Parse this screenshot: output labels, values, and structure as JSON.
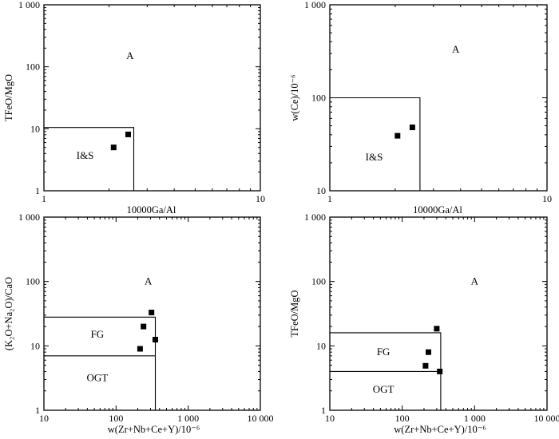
{
  "chart_data": [
    {
      "id": "p1",
      "type": "scatter",
      "scale": {
        "x": "log",
        "y": "log"
      },
      "xlim": [
        1,
        10
      ],
      "ylim": [
        1,
        1000
      ],
      "xlabel": "10000Ga/Al",
      "ylabel": "TFeO/MgO",
      "xticks": [
        {
          "v": 1,
          "label": "1"
        },
        {
          "v": 10,
          "label": "10"
        }
      ],
      "yticks": [
        {
          "v": 1,
          "label": "1"
        },
        {
          "v": 10,
          "label": "10"
        },
        {
          "v": 100,
          "label": "100"
        },
        {
          "v": 1000,
          "label": "1 000"
        }
      ],
      "minor_x": [
        2,
        3,
        4,
        5,
        6,
        7,
        8,
        9
      ],
      "minor_y": [
        2,
        3,
        4,
        5,
        6,
        7,
        8,
        9,
        20,
        30,
        40,
        50,
        60,
        70,
        80,
        90,
        200,
        300,
        400,
        500,
        600,
        700,
        800,
        900
      ],
      "fields": [
        {
          "name": "I&S",
          "boundary": [
            [
              1,
              10.5
            ],
            [
              2.6,
              10.5
            ],
            [
              2.6,
              1
            ]
          ],
          "label_at": [
            1.55,
            3.7
          ]
        },
        {
          "name": "A",
          "boundary": [],
          "label_at": [
            2.5,
            150
          ]
        }
      ],
      "points": [
        [
          2.1,
          5.0
        ],
        [
          2.45,
          8.1
        ]
      ]
    },
    {
      "id": "p2",
      "type": "scatter",
      "scale": {
        "x": "log",
        "y": "log"
      },
      "xlim": [
        1,
        10
      ],
      "ylim": [
        10,
        1000
      ],
      "xlabel": "10000Ga/Al",
      "ylabel": "w(Ce)/10⁻⁶",
      "xticks": [
        {
          "v": 1,
          "label": "1"
        },
        {
          "v": 10,
          "label": "10"
        }
      ],
      "yticks": [
        {
          "v": 10,
          "label": "10"
        },
        {
          "v": 100,
          "label": "100"
        },
        {
          "v": 1000,
          "label": "1 000"
        }
      ],
      "minor_x": [
        2,
        3,
        4,
        5,
        6,
        7,
        8,
        9
      ],
      "minor_y": [
        20,
        30,
        40,
        50,
        60,
        70,
        80,
        90,
        200,
        300,
        400,
        500,
        600,
        700,
        800,
        900
      ],
      "fields": [
        {
          "name": "I&S",
          "boundary": [
            [
              1,
              100
            ],
            [
              2.6,
              100
            ],
            [
              2.6,
              10
            ]
          ],
          "label_at": [
            1.6,
            23
          ]
        },
        {
          "name": "A",
          "boundary": [],
          "label_at": [
            3.8,
            330
          ]
        }
      ],
      "points": [
        [
          2.05,
          39
        ],
        [
          2.4,
          48
        ]
      ]
    },
    {
      "id": "p3",
      "type": "scatter",
      "scale": {
        "x": "log",
        "y": "log"
      },
      "xlim": [
        10,
        10000
      ],
      "ylim": [
        1,
        1000
      ],
      "xlabel": "w(Zr+Nb+Ce+Y)/10⁻⁶",
      "ylabel": "(K₂O+Na₂O)/CaO",
      "xticks": [
        {
          "v": 10,
          "label": "10"
        },
        {
          "v": 100,
          "label": "100"
        },
        {
          "v": 1000,
          "label": "1 000"
        },
        {
          "v": 10000,
          "label": "10 000"
        }
      ],
      "yticks": [
        {
          "v": 1,
          "label": "1"
        },
        {
          "v": 10,
          "label": "10"
        },
        {
          "v": 100,
          "label": "100"
        },
        {
          "v": 1000,
          "label": "1 000"
        }
      ],
      "minor_x": [
        20,
        30,
        40,
        50,
        60,
        70,
        80,
        90,
        200,
        300,
        400,
        500,
        600,
        700,
        800,
        900,
        2000,
        3000,
        4000,
        5000,
        6000,
        7000,
        8000,
        9000
      ],
      "minor_y": [
        2,
        3,
        4,
        5,
        6,
        7,
        8,
        9,
        20,
        30,
        40,
        50,
        60,
        70,
        80,
        90,
        200,
        300,
        400,
        500,
        600,
        700,
        800,
        900
      ],
      "fields": [
        {
          "name": "FG",
          "boundary": [
            [
              10,
              28
            ],
            [
              350,
              28
            ],
            [
              350,
              1
            ]
          ],
          "label_at": [
            55,
            15
          ]
        },
        {
          "name": "OGT",
          "boundary": [
            [
              10,
              7
            ],
            [
              350,
              7
            ]
          ],
          "label_at": [
            55,
            3.2
          ]
        },
        {
          "name": "A",
          "boundary": [],
          "label_at": [
            280,
            100
          ]
        }
      ],
      "points": [
        [
          310,
          33
        ],
        [
          240,
          20
        ],
        [
          350,
          12.5
        ],
        [
          215,
          9
        ]
      ]
    },
    {
      "id": "p4",
      "type": "scatter",
      "scale": {
        "x": "log",
        "y": "log"
      },
      "xlim": [
        10,
        10000
      ],
      "ylim": [
        1,
        1000
      ],
      "xlabel": "w(Zr+Nb+Ce+Y)/10⁻⁶",
      "ylabel": "TFeO/MgO",
      "xticks": [
        {
          "v": 10,
          "label": "10"
        },
        {
          "v": 100,
          "label": "100"
        },
        {
          "v": 1000,
          "label": "1 000"
        },
        {
          "v": 10000,
          "label": "10 000"
        }
      ],
      "yticks": [
        {
          "v": 1,
          "label": "1"
        },
        {
          "v": 10,
          "label": "10"
        },
        {
          "v": 100,
          "label": "100"
        },
        {
          "v": 1000,
          "label": "1 000"
        }
      ],
      "minor_x": [
        20,
        30,
        40,
        50,
        60,
        70,
        80,
        90,
        200,
        300,
        400,
        500,
        600,
        700,
        800,
        900,
        2000,
        3000,
        4000,
        5000,
        6000,
        7000,
        8000,
        9000
      ],
      "minor_y": [
        2,
        3,
        4,
        5,
        6,
        7,
        8,
        9,
        20,
        30,
        40,
        50,
        60,
        70,
        80,
        90,
        200,
        300,
        400,
        500,
        600,
        700,
        800,
        900
      ],
      "fields": [
        {
          "name": "FG",
          "boundary": [
            [
              10,
              16
            ],
            [
              340,
              16
            ],
            [
              340,
              1
            ]
          ],
          "label_at": [
            55,
            8
          ]
        },
        {
          "name": "OGT",
          "boundary": [
            [
              10,
              4
            ],
            [
              340,
              4
            ]
          ],
          "label_at": [
            55,
            2.1
          ]
        },
        {
          "name": "A",
          "boundary": [],
          "label_at": [
            1000,
            100
          ]
        }
      ],
      "points": [
        [
          300,
          18.5
        ],
        [
          230,
          8
        ],
        [
          210,
          4.9
        ],
        [
          330,
          4
        ]
      ]
    }
  ]
}
